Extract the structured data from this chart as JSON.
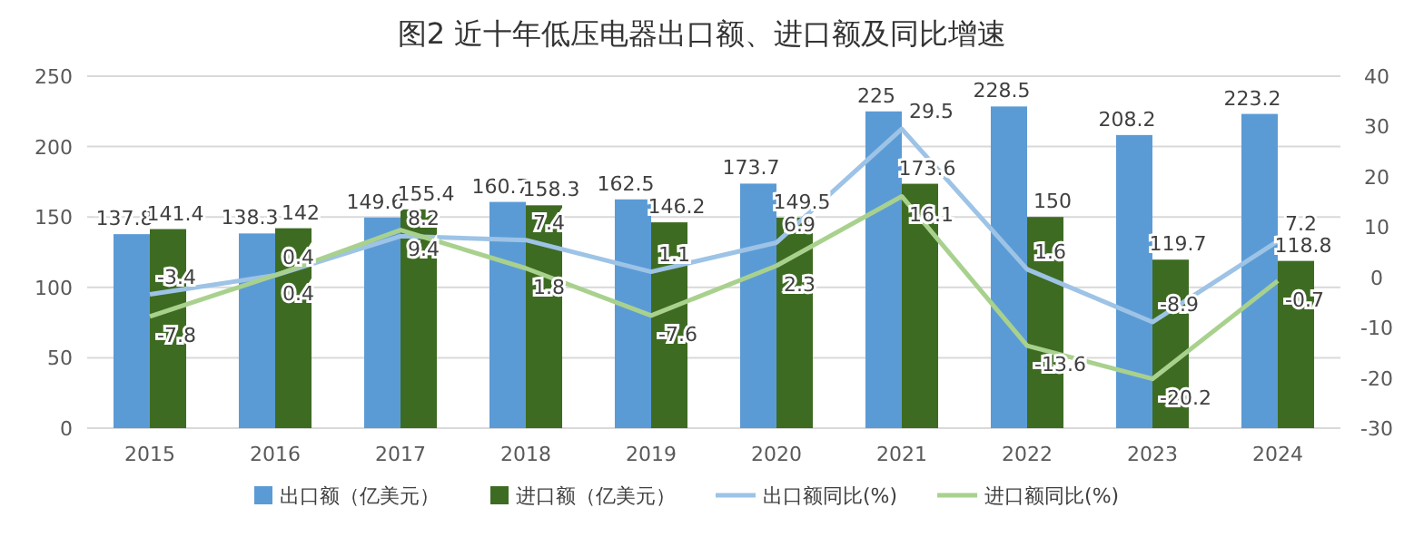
{
  "chart_data": {
    "type": "bar",
    "title": "图2 近十年低压电器出口额、进口额及同比增速",
    "categories": [
      "2015",
      "2016",
      "2017",
      "2018",
      "2019",
      "2020",
      "2021",
      "2022",
      "2023",
      "2024"
    ],
    "series": [
      {
        "name": "出口额（亿美元）",
        "color": "#5b9bd5",
        "values": [
          137.8,
          138.3,
          149.6,
          160.7,
          162.5,
          173.7,
          225,
          228.5,
          208.2,
          223.2
        ]
      },
      {
        "name": "进口额（亿美元）",
        "color": "#3e6b22",
        "values": [
          141.4,
          142,
          155.4,
          158.3,
          146.2,
          149.5,
          173.6,
          150,
          119.7,
          118.8
        ]
      },
      {
        "name": "出口额同比(%)",
        "type": "line",
        "axis": "y2",
        "color": "#9dc3e6",
        "values": [
          -3.4,
          0.4,
          8.2,
          7.4,
          1.1,
          6.9,
          29.5,
          1.6,
          -8.9,
          7.2
        ]
      },
      {
        "name": "进口额同比(%)",
        "type": "line",
        "axis": "y2",
        "color": "#a9d18e",
        "values": [
          -7.8,
          0.4,
          9.4,
          1.8,
          -7.6,
          2.3,
          16.1,
          -13.6,
          -20.2,
          -0.7
        ]
      }
    ],
    "ylim": [
      0,
      250
    ],
    "yticks": [
      0,
      50,
      100,
      150,
      200,
      250
    ],
    "y2lim": [
      -30,
      40
    ],
    "y2ticks": [
      -30,
      -20,
      -10,
      0,
      10,
      20,
      30,
      40
    ],
    "grid": "y",
    "legend": "bottom",
    "data_labels": true,
    "marker": "none",
    "line_style": "solid"
  }
}
